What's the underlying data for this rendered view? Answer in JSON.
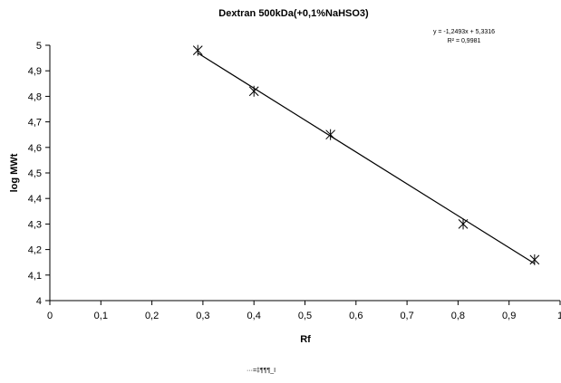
{
  "chart_data": {
    "type": "scatter",
    "title": "Dextran 500kDa(+0,1%NaHSO3)",
    "xlabel": "Rf",
    "ylabel": "log MWt",
    "xlim": [
      0,
      1
    ],
    "ylim": [
      4,
      5
    ],
    "x_ticks": [
      "0",
      "0,1",
      "0,2",
      "0,3",
      "0,4",
      "0,5",
      "0,6",
      "0,7",
      "0,8",
      "0,9",
      "1"
    ],
    "y_ticks": [
      "4",
      "4,1",
      "4,2",
      "4,3",
      "4,4",
      "4,5",
      "4,6",
      "4,7",
      "4,8",
      "4,9",
      "5"
    ],
    "series": [
      {
        "x": [
          0.29,
          0.4,
          0.55,
          0.81,
          0.95
        ],
        "y": [
          4.98,
          4.82,
          4.65,
          4.3,
          4.16
        ]
      }
    ],
    "trendline": {
      "slope": -1.2493,
      "intercept": 5.3316,
      "equation_text": "y = -1,2493x + 5,3316",
      "r2_text": "R² = 0,9981"
    },
    "grid": false,
    "legend_text": "···=‡¶¶¶_I",
    "marker": "star",
    "colors": {
      "line": "#000000",
      "marker": "#000000",
      "axis": "#000000",
      "background": "#ffffff"
    }
  }
}
